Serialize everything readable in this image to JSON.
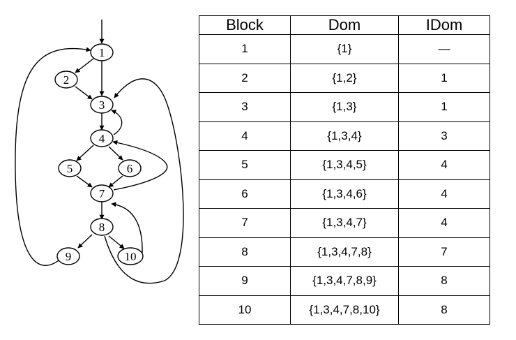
{
  "cfg": {
    "nodes": [
      "1",
      "2",
      "3",
      "4",
      "5",
      "6",
      "7",
      "8",
      "9",
      "10"
    ]
  },
  "table": {
    "headers": [
      "Block",
      "Dom",
      "IDom"
    ],
    "rows": [
      {
        "block": "1",
        "dom": "{1}",
        "idom": "—"
      },
      {
        "block": "2",
        "dom": "{1,2}",
        "idom": "1"
      },
      {
        "block": "3",
        "dom": "{1,3}",
        "idom": "1"
      },
      {
        "block": "4",
        "dom": "{1,3,4}",
        "idom": "3"
      },
      {
        "block": "5",
        "dom": "{1,3,4,5}",
        "idom": "4"
      },
      {
        "block": "6",
        "dom": "{1,3,4,6}",
        "idom": "4"
      },
      {
        "block": "7",
        "dom": "{1,3,4,7}",
        "idom": "4"
      },
      {
        "block": "8",
        "dom": "{1,3,4,7,8}",
        "idom": "7"
      },
      {
        "block": "9",
        "dom": "{1,3,4,7,8,9}",
        "idom": "8"
      },
      {
        "block": "10",
        "dom": "{1,3,4,7,8,10}",
        "idom": "8"
      }
    ]
  }
}
